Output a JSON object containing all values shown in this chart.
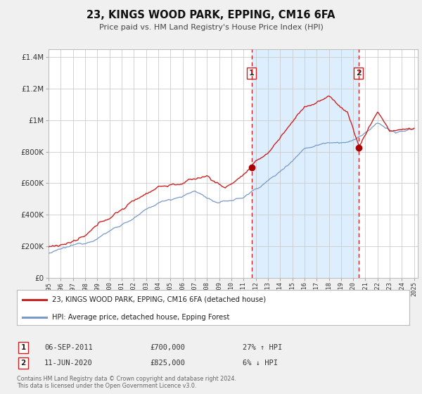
{
  "title": "23, KINGS WOOD PARK, EPPING, CM16 6FA",
  "subtitle": "Price paid vs. HM Land Registry's House Price Index (HPI)",
  "legend_line1": "23, KINGS WOOD PARK, EPPING, CM16 6FA (detached house)",
  "legend_line2": "HPI: Average price, detached house, Epping Forest",
  "sale1_date": "06-SEP-2011",
  "sale1_price": 700000,
  "sale1_hpi": "27% ↑ HPI",
  "sale2_date": "11-JUN-2020",
  "sale2_price": 825000,
  "sale2_hpi": "6% ↓ HPI",
  "footnote": "Contains HM Land Registry data © Crown copyright and database right 2024.\nThis data is licensed under the Open Government Licence v3.0.",
  "hpi_color": "#7799cc",
  "price_color": "#cc2222",
  "marker_color": "#aa0000",
  "sale1_x": 2011.67,
  "sale2_x": 2020.44,
  "ylim_min": 0,
  "ylim_max": 1450000,
  "xlim_min": 1995.0,
  "xlim_max": 2025.3,
  "shade_color": "#ddeeff",
  "background_color": "#f0f0f0",
  "plot_bg_color": "#ffffff"
}
